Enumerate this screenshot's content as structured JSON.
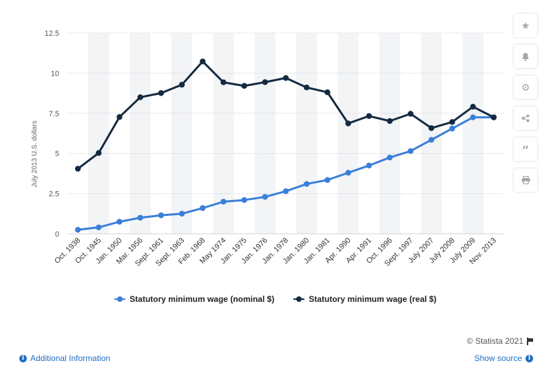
{
  "chart_data": {
    "type": "line",
    "categories": [
      "Oct. 1938",
      "Oct. 1945",
      "Jan. 1950",
      "Mar. 1956",
      "Sept. 1961",
      "Sept. 1963",
      "Feb. 1968",
      "May 1974",
      "Jan. 1975",
      "Jan. 1976",
      "Jan. 1978",
      "Jan. 1980",
      "Jan. 1981",
      "Apr. 1990",
      "Apr. 1991",
      "Oct. 1996",
      "Sept. 1997",
      "July 2007",
      "July 2008",
      "July 2009",
      "Nov. 2013"
    ],
    "series": [
      {
        "name": "Statutory minimum wage (nominal $)",
        "color": "#3a7fd9",
        "values": [
          0.25,
          0.4,
          0.75,
          1.0,
          1.15,
          1.25,
          1.6,
          2.0,
          2.1,
          2.3,
          2.65,
          3.1,
          3.35,
          3.8,
          4.25,
          4.75,
          5.15,
          5.85,
          6.55,
          7.25,
          7.25
        ]
      },
      {
        "name": "Statutory minimum wage (real $)",
        "color": "#142a40",
        "values": [
          4.05,
          5.03,
          7.27,
          8.5,
          8.76,
          9.28,
          10.73,
          9.43,
          9.21,
          9.44,
          9.7,
          9.11,
          8.81,
          6.87,
          7.33,
          7.02,
          7.47,
          6.58,
          6.96,
          7.91,
          7.25
        ]
      }
    ],
    "title": "",
    "xlabel": "",
    "ylabel": "July 2013 U.S. dollars",
    "ylim": [
      0,
      12.5
    ],
    "yticks": [
      "0",
      "2.5",
      "5",
      "7.5",
      "10",
      "12.5"
    ],
    "grid": true,
    "legend_position": "bottom"
  },
  "toolbar": {
    "icons": [
      "star-icon",
      "bell-icon",
      "gear-icon",
      "share-icon",
      "quote-icon",
      "print-icon"
    ]
  },
  "footer": {
    "credit": "© Statista 2021",
    "additional_info": "Additional Information",
    "show_source": "Show source"
  }
}
